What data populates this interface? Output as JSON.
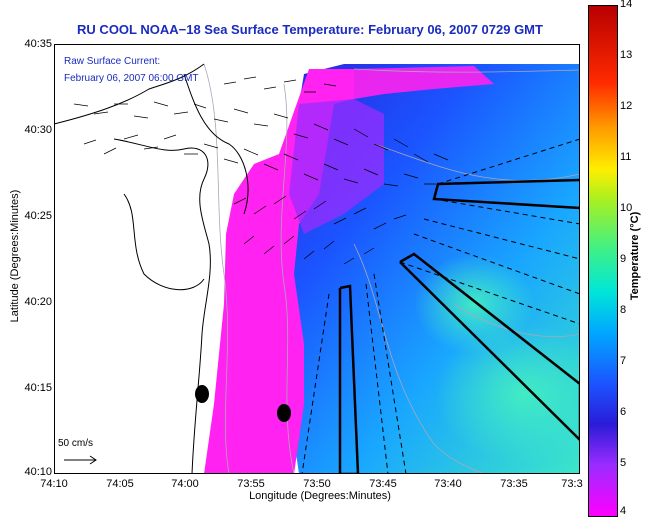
{
  "title": "RU COOL  NOAA−18  Sea Surface Temperature:  February 06, 2007 0729 GMT",
  "current_overlay": {
    "line1": "Raw Surface Current:",
    "line2": "February 06, 2007 06:00 GMT"
  },
  "scale_label": "50 cm/s",
  "axes": {
    "ylabel": "Latitude (Degrees:Minutes)",
    "xlabel": "Longitude (Degrees:Minutes)",
    "yticks": [
      "40:35",
      "40:30",
      "40:25",
      "40:20",
      "40:15",
      "40:10"
    ],
    "xticks": [
      "74:10",
      "74:05",
      "74:00",
      "73:55",
      "73:50",
      "73:45",
      "73:40",
      "73:35",
      "73:3"
    ]
  },
  "colorbar": {
    "label": "Temperature (°C)",
    "ticks": [
      "14",
      "13",
      "12",
      "11",
      "10",
      "9",
      "8",
      "7",
      "6",
      "5",
      "4"
    ]
  },
  "colors": {
    "title": "#1a2bbf",
    "land": "#ffffff",
    "coast": "#000000"
  }
}
